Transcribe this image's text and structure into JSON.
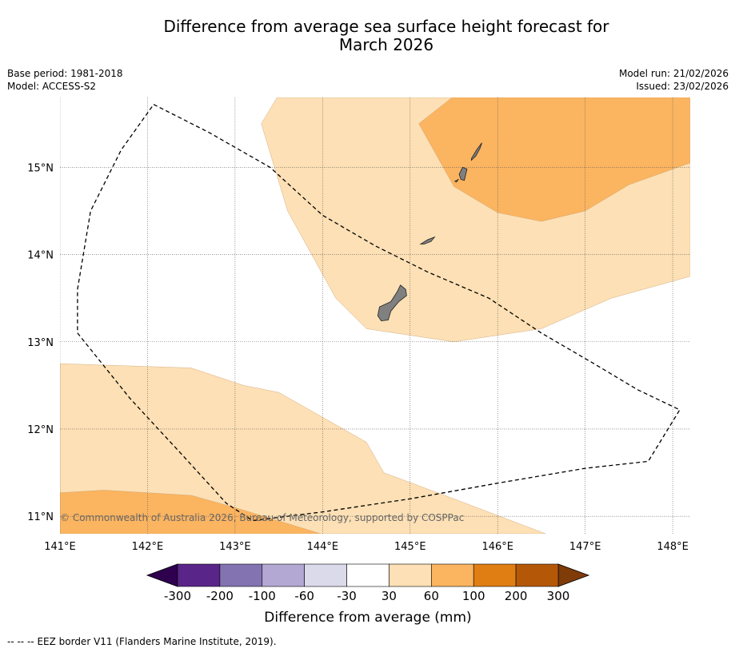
{
  "title": {
    "line1": "Difference from average sea surface height forecast for",
    "line2": "March 2026"
  },
  "meta": {
    "base_period": "Base period: 1981-2018",
    "model": "Model: ACCESS-S2",
    "model_run": "Model run: 21/02/2026",
    "issued": "Issued: 23/02/2026"
  },
  "map": {
    "lon_range": [
      141.0,
      148.2
    ],
    "lat_range": [
      10.8,
      15.8
    ],
    "lon_ticks": [
      141,
      142,
      143,
      144,
      145,
      146,
      147,
      148
    ],
    "lon_labels": [
      "141°E",
      "142°E",
      "143°E",
      "144°E",
      "145°E",
      "146°E",
      "147°E",
      "148°E"
    ],
    "lat_ticks": [
      15,
      14,
      13,
      12,
      11
    ],
    "lat_labels": [
      "15°N",
      "14°N",
      "13°N",
      "12°N",
      "11°N"
    ],
    "copyright": "© Commonwealth of Australia 2026, Bureau of Meteorology, supported by COSPPac",
    "anomaly_regions": [
      {
        "category": "30-60",
        "color": "#fde0b5",
        "polygon": [
          [
            143.48,
            15.8
          ],
          [
            145.5,
            15.8
          ],
          [
            148.2,
            15.8
          ],
          [
            148.2,
            13.75
          ],
          [
            147.3,
            13.5
          ],
          [
            146.5,
            13.15
          ],
          [
            145.5,
            13.0
          ],
          [
            144.5,
            13.15
          ],
          [
            144.15,
            13.5
          ],
          [
            143.6,
            14.5
          ],
          [
            143.3,
            15.5
          ]
        ]
      },
      {
        "category": "60-100",
        "color": "#fbb460",
        "polygon": [
          [
            145.48,
            15.8
          ],
          [
            148.2,
            15.8
          ],
          [
            148.2,
            15.05
          ],
          [
            147.5,
            14.8
          ],
          [
            147.0,
            14.5
          ],
          [
            146.5,
            14.38
          ],
          [
            146.0,
            14.48
          ],
          [
            145.5,
            14.78
          ],
          [
            145.1,
            15.5
          ]
        ]
      },
      {
        "category": "30-60",
        "color": "#fde0b5",
        "polygon": [
          [
            141.0,
            12.75
          ],
          [
            142.5,
            12.7
          ],
          [
            143.1,
            12.5
          ],
          [
            143.5,
            12.42
          ],
          [
            144.5,
            11.85
          ],
          [
            144.7,
            11.5
          ],
          [
            145.5,
            11.2
          ],
          [
            146.55,
            10.8
          ],
          [
            141.0,
            10.8
          ]
        ]
      },
      {
        "category": "60-100",
        "color": "#fbb460",
        "polygon": [
          [
            141.0,
            11.27
          ],
          [
            141.5,
            11.3
          ],
          [
            142.5,
            11.24
          ],
          [
            143.0,
            11.1
          ],
          [
            143.98,
            10.8
          ],
          [
            141.0,
            10.8
          ]
        ]
      }
    ],
    "islands": [
      {
        "name": "Guam",
        "polygon": [
          [
            144.65,
            13.4
          ],
          [
            144.78,
            13.46
          ],
          [
            144.85,
            13.57
          ],
          [
            144.89,
            13.65
          ],
          [
            144.95,
            13.6
          ],
          [
            144.96,
            13.53
          ],
          [
            144.87,
            13.46
          ],
          [
            144.78,
            13.35
          ],
          [
            144.75,
            13.25
          ],
          [
            144.67,
            13.24
          ],
          [
            144.63,
            13.3
          ]
        ]
      },
      {
        "name": "Rota",
        "polygon": [
          [
            145.12,
            14.12
          ],
          [
            145.2,
            14.17
          ],
          [
            145.28,
            14.2
          ],
          [
            145.24,
            14.15
          ],
          [
            145.16,
            14.12
          ]
        ]
      },
      {
        "name": "Tinian",
        "polygon": [
          [
            145.56,
            14.92
          ],
          [
            145.6,
            15.0
          ],
          [
            145.65,
            14.98
          ],
          [
            145.62,
            14.85
          ],
          [
            145.58,
            14.86
          ]
        ]
      },
      {
        "name": "Saipan",
        "polygon": [
          [
            145.7,
            15.1
          ],
          [
            145.76,
            15.2
          ],
          [
            145.82,
            15.28
          ],
          [
            145.8,
            15.22
          ],
          [
            145.75,
            15.13
          ],
          [
            145.7,
            15.08
          ]
        ]
      },
      {
        "name": "Aguijan",
        "polygon": [
          [
            145.51,
            14.84
          ],
          [
            145.55,
            14.86
          ],
          [
            145.53,
            14.83
          ]
        ]
      }
    ],
    "eez_border": [
      [
        142.07,
        15.72
      ],
      [
        142.7,
        15.4
      ],
      [
        143.4,
        15.0
      ],
      [
        144.0,
        14.45
      ],
      [
        144.6,
        14.1
      ],
      [
        145.2,
        13.8
      ],
      [
        145.9,
        13.5
      ],
      [
        146.5,
        13.1
      ],
      [
        147.1,
        12.75
      ],
      [
        147.6,
        12.45
      ],
      [
        148.08,
        12.22
      ],
      [
        147.72,
        11.63
      ],
      [
        147.0,
        11.55
      ],
      [
        146.0,
        11.38
      ],
      [
        145.0,
        11.2
      ],
      [
        144.0,
        11.05
      ],
      [
        143.2,
        10.95
      ],
      [
        142.9,
        11.15
      ],
      [
        142.4,
        11.7
      ],
      [
        141.8,
        12.35
      ],
      [
        141.2,
        13.1
      ],
      [
        141.2,
        13.6
      ],
      [
        141.35,
        14.5
      ],
      [
        141.7,
        15.2
      ],
      [
        142.07,
        15.72
      ]
    ]
  },
  "colorbar": {
    "tick_labels": [
      "-300",
      "-200",
      "-100",
      "-60",
      "-30",
      "30",
      "60",
      "100",
      "200",
      "300"
    ],
    "colors": [
      "#5a2588",
      "#8373b1",
      "#b2a8d3",
      "#dadaeb",
      "#ffffff",
      "#fde0b5",
      "#fbb460",
      "#e07e14",
      "#b45808"
    ],
    "under_color": "#2e004e",
    "over_color": "#7f3b08",
    "label": "Difference from average (mm)"
  },
  "footer": {
    "legend_symbol": "--  --  --",
    "legend_text": "EEZ border V11 (Flanders Marine Institute, 2019)."
  }
}
